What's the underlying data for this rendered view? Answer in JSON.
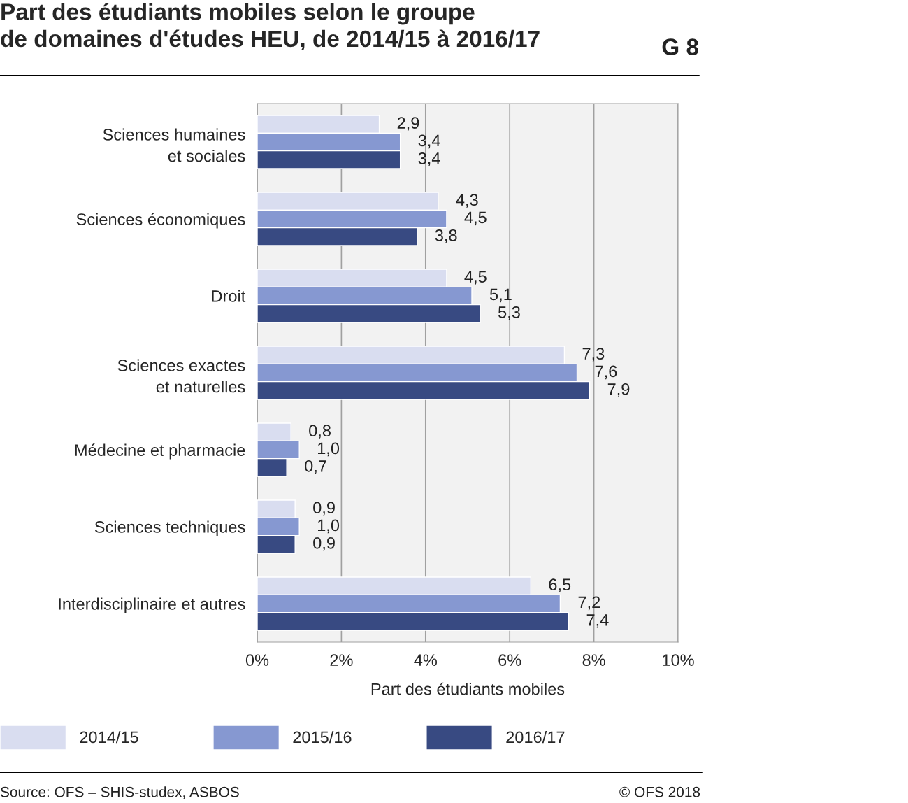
{
  "chart_data": {
    "type": "bar",
    "orientation": "horizontal",
    "title": "Part des étudiants mobiles selon le groupe\nde domaines d'études HEU, de 2014/15 à 2016/17",
    "xlabel": "Part des étudiants mobiles",
    "categories": [
      "Sciences humaines\net sociales",
      "Sciences économiques",
      "Droit",
      "Sciences exactes\net naturelles",
      "Médecine et pharmacie",
      "Sciences techniques",
      "Interdisciplinaire et autres"
    ],
    "series": [
      {
        "name": "2014/15",
        "color": "#d9ddf0",
        "values": [
          2.9,
          4.3,
          4.5,
          7.3,
          0.8,
          0.9,
          6.5
        ],
        "value_labels": [
          "2,9",
          "4,3",
          "4,5",
          "7,3",
          "0,8",
          "0,9",
          "6,5"
        ]
      },
      {
        "name": "2015/16",
        "color": "#8698d1",
        "values": [
          3.4,
          4.5,
          5.1,
          7.6,
          1.0,
          1.0,
          7.2
        ],
        "value_labels": [
          "3,4",
          "4,5",
          "5,1",
          "7,6",
          "1,0",
          "1,0",
          "7,2"
        ]
      },
      {
        "name": "2016/17",
        "color": "#384a82",
        "values": [
          3.4,
          3.8,
          5.3,
          7.9,
          0.7,
          0.9,
          7.4
        ],
        "value_labels": [
          "3,4",
          "3,8",
          "5,3",
          "7,9",
          "0,7",
          "0,9",
          "7,4"
        ]
      }
    ],
    "xlim": [
      0,
      10
    ],
    "xticks": [
      {
        "value": 0,
        "label": "0%"
      },
      {
        "value": 2,
        "label": "2%"
      },
      {
        "value": 4,
        "label": "4%"
      },
      {
        "value": 6,
        "label": "6%"
      },
      {
        "value": 8,
        "label": "8%"
      },
      {
        "value": 10,
        "label": "10%"
      }
    ],
    "grid": "x",
    "legend": "bottom",
    "annotations": [
      "G 8",
      "Source: OFS – SHIS-studex, ASBOS",
      "© OFS 2018"
    ]
  }
}
